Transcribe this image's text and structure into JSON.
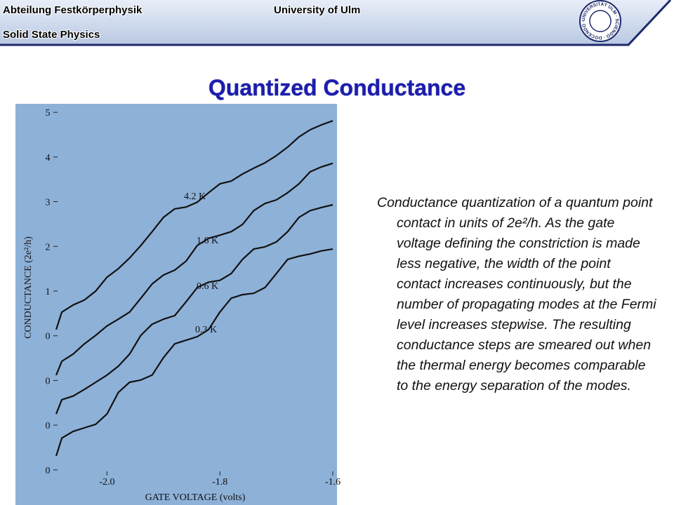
{
  "header": {
    "department": "Abteilung Festkörperphysik",
    "subtitle": "Solid State Physics",
    "university": "University of Ulm",
    "logo_text": "UNIVERSITÄT ULM · SCIENDO · DOCENDO · CURANDO ·"
  },
  "title": "Quantized Conductance",
  "caption": "Conductance quantization of a quantum point contact in units of 2e²/h. As the gate voltage defining the constriction is made less negative, the width of the point contact increases continuously, but the number of propagating modes at the Fermi level increases stepwise. The resulting conductance steps are smeared out when the thermal energy becomes comparable to the energy separation of the modes.",
  "chart_data": {
    "type": "line",
    "xlabel": "GATE VOLTAGE (volts)",
    "ylabel": "CONDUCTANCE (2e²/h)",
    "x": [
      -2.09,
      -2.08,
      -2.06,
      -2.04,
      -2.02,
      -2.0,
      -1.98,
      -1.96,
      -1.94,
      -1.92,
      -1.9,
      -1.88,
      -1.86,
      -1.84,
      -1.82,
      -1.8,
      -1.78,
      -1.76,
      -1.74,
      -1.72,
      -1.7,
      -1.68,
      -1.66,
      -1.64,
      -1.62,
      -1.6
    ],
    "series": [
      {
        "name": "4.2 K",
        "color": "#111111",
        "values": [
          3.14,
          3.53,
          3.69,
          3.8,
          4.0,
          4.31,
          4.5,
          4.74,
          5.02,
          5.33,
          5.65,
          5.84,
          5.88,
          5.99,
          6.2,
          6.4,
          6.46,
          6.62,
          6.75,
          6.87,
          7.03,
          7.22,
          7.45,
          7.61,
          7.72,
          7.81
        ]
      },
      {
        "name": "1.6 K",
        "color": "#111111",
        "values": [
          2.12,
          2.43,
          2.59,
          2.82,
          3.01,
          3.22,
          3.37,
          3.53,
          3.84,
          4.16,
          4.36,
          4.47,
          4.67,
          5.02,
          5.18,
          5.25,
          5.33,
          5.49,
          5.8,
          5.96,
          6.04,
          6.2,
          6.4,
          6.67,
          6.78,
          6.86
        ]
      },
      {
        "name": "0.6 K",
        "color": "#111111",
        "values": [
          1.25,
          1.57,
          1.65,
          1.8,
          1.96,
          2.12,
          2.32,
          2.59,
          3.01,
          3.26,
          3.37,
          3.45,
          3.76,
          4.08,
          4.2,
          4.24,
          4.39,
          4.71,
          4.94,
          4.99,
          5.1,
          5.33,
          5.65,
          5.8,
          5.87,
          5.93
        ]
      },
      {
        "name": "0.3 K",
        "color": "#111111",
        "values": [
          0.31,
          0.71,
          0.86,
          0.94,
          1.02,
          1.25,
          1.73,
          1.96,
          2.01,
          2.12,
          2.51,
          2.82,
          2.9,
          2.98,
          3.14,
          3.53,
          3.84,
          3.92,
          3.95,
          4.08,
          4.39,
          4.71,
          4.78,
          4.83,
          4.9,
          4.94
        ]
      }
    ],
    "xlim": [
      -2.1,
      -1.6
    ],
    "ylim": [
      -0.3,
      8.3
    ],
    "xticks": [
      {
        "value": -2.0,
        "label": "-2.0"
      },
      {
        "value": -1.8,
        "label": "-1.8"
      },
      {
        "value": -1.6,
        "label": "-1.6"
      }
    ],
    "yticks": [
      {
        "value": 0,
        "label": "0"
      },
      {
        "value": 1,
        "label": "0"
      },
      {
        "value": 2,
        "label": "0"
      },
      {
        "value": 3,
        "label": "0"
      },
      {
        "value": 4,
        "label": "1"
      },
      {
        "value": 5,
        "label": "2"
      },
      {
        "value": 6,
        "label": "3"
      },
      {
        "value": 7,
        "label": "4"
      },
      {
        "value": 8,
        "label": "5"
      }
    ],
    "background": "#8eb1d8"
  }
}
